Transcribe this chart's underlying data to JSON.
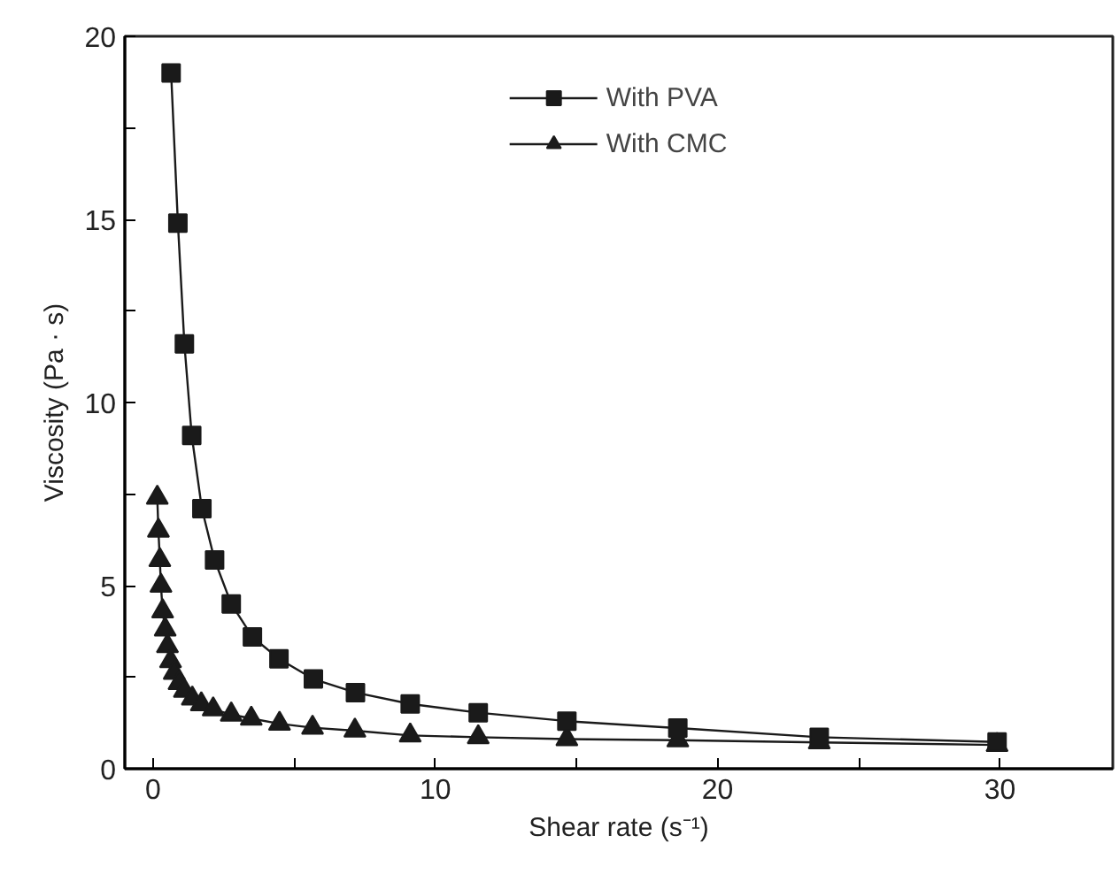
{
  "chart_data": {
    "type": "line",
    "xlabel": "Shear rate (s⁻¹)",
    "ylabel": "Viscosity (Pa · s)",
    "xlim": [
      -1,
      34
    ],
    "ylim": [
      0,
      20
    ],
    "xticks": [
      0,
      {
        "value": 5,
        "label": null
      },
      10,
      {
        "value": 15,
        "label": null
      },
      20,
      {
        "value": 25,
        "label": null
      },
      30
    ],
    "yticks": [
      0,
      {
        "value": 2.5,
        "label": null
      },
      5,
      {
        "value": 7.5,
        "label": null
      },
      10,
      {
        "value": 12.5,
        "label": null
      },
      15,
      {
        "value": 17.5,
        "label": null
      },
      20
    ],
    "grid": false,
    "legend": "top",
    "line_style": "solid",
    "series": [
      {
        "name": "With PVA",
        "color": "#1a1a1a",
        "marker": "square",
        "x": [
          0.64,
          0.88,
          1.11,
          1.37,
          1.73,
          2.18,
          2.77,
          3.52,
          4.46,
          5.68,
          7.17,
          9.11,
          11.52,
          14.66,
          18.59,
          23.6,
          29.9
        ],
        "values": [
          19.0,
          14.9,
          11.6,
          9.1,
          7.1,
          5.7,
          4.5,
          3.6,
          3.0,
          2.45,
          2.08,
          1.77,
          1.53,
          1.3,
          1.11,
          0.86,
          0.73
        ]
      },
      {
        "name": "With CMC",
        "color": "#1a1a1a",
        "marker": "triangle",
        "x": [
          0.15,
          0.19,
          0.24,
          0.28,
          0.34,
          0.43,
          0.51,
          0.62,
          0.75,
          0.92,
          1.11,
          1.39,
          1.71,
          2.13,
          2.77,
          3.48,
          4.48,
          5.65,
          7.15,
          9.11,
          11.52,
          14.66,
          18.59,
          23.6,
          29.9
        ],
        "values": [
          7.4,
          6.5,
          5.7,
          5.0,
          4.3,
          3.8,
          3.35,
          2.94,
          2.62,
          2.34,
          2.13,
          1.92,
          1.76,
          1.62,
          1.48,
          1.37,
          1.23,
          1.12,
          1.04,
          0.91,
          0.86,
          0.81,
          0.78,
          0.72,
          0.65
        ]
      }
    ]
  }
}
